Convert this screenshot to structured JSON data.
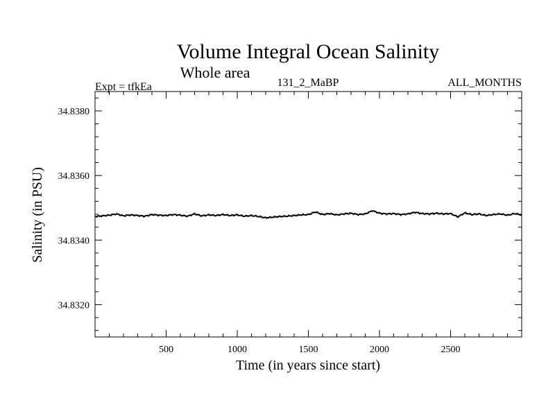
{
  "chart_data": {
    "type": "line",
    "title": "Volume Integral Ocean Salinity",
    "subtitle": "Whole area",
    "header_left": "Expt = tfkEa",
    "header_center": "131_2_MaBP",
    "header_right": "ALL_MONTHS",
    "xlabel": "Time (in years since start)",
    "ylabel": "Salinity (in PSU)",
    "xlim": [
      0,
      3000
    ],
    "ylim": [
      34.831,
      34.8386
    ],
    "x_ticks": [
      500,
      1000,
      1500,
      2000,
      2500
    ],
    "y_ticks": [
      34.832,
      34.834,
      34.836,
      34.838
    ],
    "x_tick_labels": [
      "500",
      "1000",
      "1500",
      "2000",
      "2500"
    ],
    "y_tick_labels": [
      "34.8320",
      "34.8340",
      "34.8360",
      "34.8380"
    ],
    "line_color": "#000000",
    "series": [
      {
        "x": [
          0,
          50,
          100,
          150,
          200,
          250,
          300,
          350,
          400,
          450,
          500,
          550,
          600,
          650,
          700,
          750,
          800,
          850,
          900,
          950,
          1000,
          1050,
          1100,
          1150,
          1200,
          1250,
          1300,
          1350,
          1400,
          1450,
          1500,
          1550,
          1600,
          1650,
          1700,
          1750,
          1800,
          1850,
          1900,
          1950,
          2000,
          2050,
          2100,
          2150,
          2200,
          2250,
          2300,
          2350,
          2400,
          2450,
          2500,
          2550,
          2600,
          2650,
          2700,
          2750,
          2800,
          2850,
          2900,
          2950,
          3000
        ],
        "y": [
          34.83473,
          34.83475,
          34.83477,
          34.83481,
          34.83475,
          34.83478,
          34.83476,
          34.83474,
          34.83479,
          34.83477,
          34.83476,
          34.83479,
          34.83477,
          34.83474,
          34.83481,
          34.83475,
          34.83478,
          34.83476,
          34.83479,
          34.83476,
          34.83478,
          34.83474,
          34.83476,
          34.83473,
          34.83469,
          34.83471,
          34.83473,
          34.83474,
          34.83476,
          34.83478,
          34.83479,
          34.83487,
          34.83479,
          34.83482,
          34.83478,
          34.83481,
          34.83483,
          34.83479,
          34.83481,
          34.83491,
          34.83483,
          34.83481,
          34.83482,
          34.83479,
          34.83481,
          34.83486,
          34.83482,
          34.83481,
          34.83483,
          34.83481,
          34.83482,
          34.83472,
          34.83484,
          34.83479,
          34.83481,
          34.83476,
          34.83479,
          34.83481,
          34.83477,
          34.83482,
          34.83478
        ]
      }
    ]
  }
}
